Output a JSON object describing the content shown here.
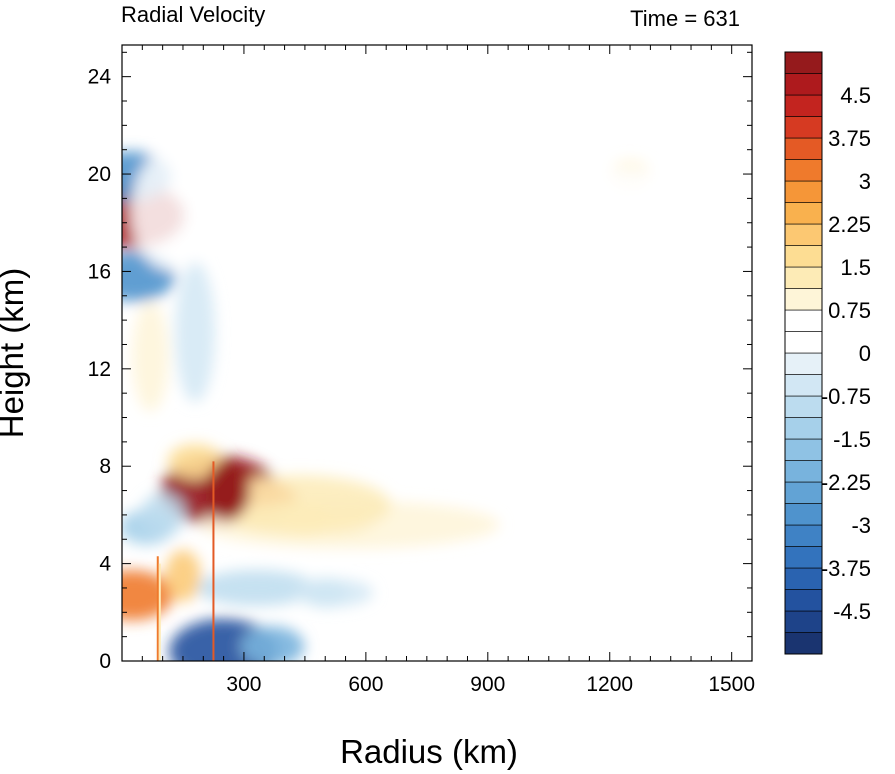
{
  "chart_data": {
    "type": "heatmap",
    "title": "Radial Velocity",
    "subtitle": "Time = 631",
    "xlabel": "Radius (km)",
    "ylabel": "Height (km)",
    "xlim": [
      0,
      1550
    ],
    "ylim": [
      0,
      25.3
    ],
    "x_ticks": [
      300,
      600,
      900,
      1200,
      1500
    ],
    "y_ticks": [
      0,
      4,
      8,
      12,
      16,
      20,
      24
    ],
    "x_tick_labels": [
      "300",
      "600",
      "900",
      "1200",
      "1500"
    ],
    "y_tick_labels": [
      "0",
      "4",
      "8",
      "12",
      "16",
      "20",
      "24"
    ],
    "colorbar": {
      "levels_min": -5.25,
      "levels_max": 5.25,
      "interval": 0.375,
      "labels": [
        "4.5",
        "3.75",
        "3",
        "2.25",
        "1.5",
        "0.75",
        "0",
        "-0.75",
        "-1.5",
        "-2.25",
        "-3",
        "-3.75",
        "-4.5"
      ],
      "label_values": [
        4.5,
        3.75,
        3,
        2.25,
        1.5,
        0.75,
        0,
        -0.75,
        -1.5,
        -2.25,
        -3,
        -3.75,
        -4.5
      ]
    },
    "features": [
      {
        "kind": "outflow_max",
        "x": 240,
        "y": 7.0,
        "value": 5.0
      },
      {
        "kind": "outflow",
        "x": 330,
        "y": 6.5,
        "value": 3.0
      },
      {
        "kind": "outflow",
        "x": 450,
        "y": 5.8,
        "value": 1.5
      },
      {
        "kind": "outflow",
        "x": 560,
        "y": 5.6,
        "value": 1.0
      },
      {
        "kind": "outflow",
        "x": 20,
        "y": 18.3,
        "value": 4.5
      },
      {
        "kind": "outflow",
        "x": 25,
        "y": 2.7,
        "value": 3.0
      },
      {
        "kind": "outflow",
        "x": 180,
        "y": 8.2,
        "value": 1.5
      },
      {
        "kind": "outflow",
        "x": 1250,
        "y": 20.0,
        "value": 0.75
      },
      {
        "kind": "inflow",
        "x": 20,
        "y": 19.9,
        "value": -3.0
      },
      {
        "kind": "inflow",
        "x": 30,
        "y": 15.8,
        "value": -3.0
      },
      {
        "kind": "inflow",
        "x": 250,
        "y": 0.4,
        "value": -4.5
      },
      {
        "kind": "inflow",
        "x": 370,
        "y": 0.6,
        "value": -2.0
      },
      {
        "kind": "inflow",
        "x": 60,
        "y": 5.5,
        "value": -1.5
      },
      {
        "kind": "inflow",
        "x": 500,
        "y": 2.8,
        "value": -0.9
      }
    ]
  }
}
